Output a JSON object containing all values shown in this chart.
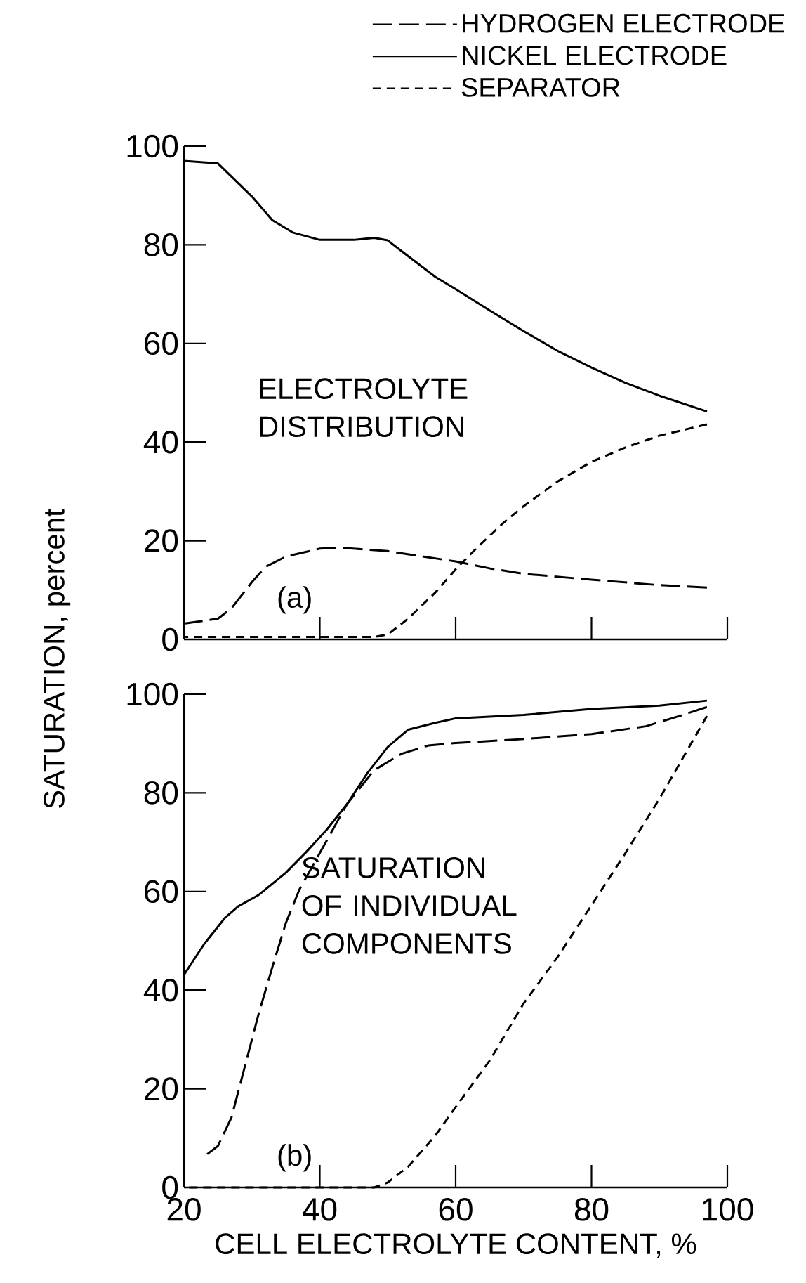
{
  "chart_data": [
    {
      "type": "line",
      "ylabel": "SATURATION, percent",
      "annotations": [
        "(a)",
        "ELECTROLYTE DISTRIBUTION"
      ],
      "xlim": [
        20,
        100
      ],
      "ylim": [
        0,
        100
      ],
      "xticks": [
        40,
        60,
        80,
        100
      ],
      "yticks": [
        0,
        20,
        40,
        60,
        80,
        100
      ],
      "tick_labels": "y",
      "legend": "top right",
      "series": [
        {
          "name": "HYDROGEN ELECTRODE",
          "color": "#000000",
          "line_style": "dashed",
          "x": [
            20,
            25,
            27,
            30,
            32,
            35,
            40,
            43,
            50,
            60,
            65,
            70,
            80,
            90,
            97
          ],
          "values": [
            3.2,
            4.2,
            6.3,
            11.6,
            14.7,
            16.8,
            18.4,
            18.6,
            17.9,
            15.8,
            14.4,
            13.3,
            12.1,
            11,
            10.5
          ]
        },
        {
          "name": "NICKEL ELECTRODE",
          "color": "#000000",
          "line_style": "solid",
          "x": [
            20,
            25,
            30,
            33,
            36,
            40,
            45,
            48,
            50,
            53,
            57,
            60,
            65,
            70,
            75,
            80,
            85,
            90,
            97
          ],
          "values": [
            97,
            96.5,
            89.8,
            85,
            82.5,
            81,
            81,
            81.4,
            80.9,
            77.7,
            73.5,
            71,
            66.7,
            62.5,
            58.5,
            55.1,
            52,
            49.4,
            46.2
          ]
        },
        {
          "name": "SEPARATOR",
          "color": "#000000",
          "line_style": "dashed",
          "x": [
            20,
            30,
            40,
            48,
            50,
            53,
            57,
            60,
            63,
            67,
            70,
            75,
            80,
            85,
            90,
            97
          ],
          "values": [
            0.5,
            0.5,
            0.5,
            0.5,
            1,
            4.2,
            9.5,
            14.2,
            18.4,
            23.6,
            27,
            32,
            36,
            38.9,
            41.3,
            43.6
          ]
        }
      ]
    },
    {
      "type": "line",
      "xlabel": "CELL ELECTROLYTE CONTENT, %",
      "annotations": [
        "(b)",
        "SATURATION OF INDIVIDUAL COMPONENTS"
      ],
      "xlim": [
        20,
        100
      ],
      "ylim": [
        0,
        100
      ],
      "xticks": [
        20,
        40,
        60,
        80,
        100
      ],
      "yticks": [
        0,
        20,
        40,
        60,
        80,
        100
      ],
      "series": [
        {
          "color": "#000000",
          "line_style": "dashed",
          "x": [
            23,
            25,
            27,
            29,
            31,
            33,
            35,
            37,
            40,
            44,
            48,
            52,
            56,
            60,
            70,
            80,
            88,
            93,
            97
          ],
          "values": [
            6.3,
            8.4,
            14.2,
            24.7,
            35.2,
            44.6,
            53.6,
            60.4,
            67.8,
            77.7,
            84.6,
            87.9,
            89.6,
            90.1,
            90.9,
            91.9,
            93.5,
            95.6,
            97.4
          ]
        },
        {
          "color": "#000000",
          "line_style": "solid",
          "x": [
            20,
            23,
            26,
            28,
            31,
            35,
            38,
            41,
            44,
            47,
            50,
            53,
            57,
            60,
            70,
            80,
            90,
            97
          ],
          "values": [
            43.1,
            49.4,
            54.6,
            57,
            59.3,
            63.8,
            68,
            72.5,
            77.7,
            84,
            89.3,
            92.8,
            94.2,
            95.1,
            95.8,
            97,
            97.7,
            98.7
          ]
        },
        {
          "color": "#000000",
          "line_style": "dashed",
          "x": [
            20,
            30,
            40,
            48,
            50,
            53,
            57,
            60,
            65,
            70,
            75,
            80,
            85,
            90,
            97
          ],
          "values": [
            0,
            0,
            0,
            0,
            1,
            4.2,
            10.5,
            16.3,
            25.7,
            37.3,
            46.7,
            57.2,
            67.8,
            78.8,
            95.6
          ]
        }
      ]
    }
  ]
}
